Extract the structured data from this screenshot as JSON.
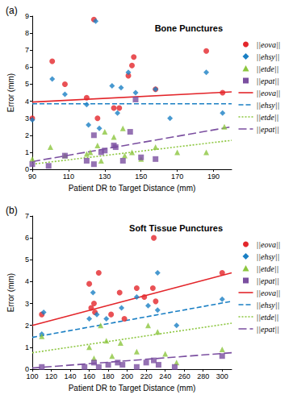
{
  "chart_data": [
    {
      "type": "scatter",
      "panel_label": "(a)",
      "title": "Bone Punctures",
      "x_label": "Patient DR to Target Distance (mm)",
      "y_label": "Error (mm)",
      "xlim": [
        90,
        200
      ],
      "xticks": [
        90,
        110,
        130,
        150,
        170,
        190
      ],
      "ylim": [
        0,
        9
      ],
      "yticks": [
        0,
        1,
        2,
        3,
        4,
        5,
        6,
        7,
        8,
        9
      ],
      "grid": false,
      "legend": "right",
      "series": [
        {
          "name": "||eova||",
          "color": "#e3262b",
          "marker": "circle",
          "x": [
            90,
            101,
            108,
            120,
            124,
            135,
            138,
            143,
            145,
            146,
            158,
            186,
            195,
            126
          ],
          "values": [
            3.0,
            6.35,
            5.0,
            4.2,
            8.8,
            3.6,
            3.6,
            5.5,
            6.1,
            6.6,
            4.7,
            6.95,
            4.5,
            3.0
          ]
        },
        {
          "name": "||ehsy||",
          "color": "#1a7fc4",
          "marker": "diamond",
          "x": [
            90,
            101,
            108,
            120,
            125,
            134,
            139,
            137,
            143,
            147,
            158,
            166,
            186,
            195,
            127,
            121
          ],
          "values": [
            2.9,
            5.3,
            4.4,
            3.8,
            8.7,
            4.9,
            4.8,
            3.3,
            5.7,
            4.5,
            4.7,
            3.0,
            5.7,
            3.3,
            2.4,
            2.6
          ]
        },
        {
          "name": "||etde||",
          "color": "#8cc63f",
          "marker": "triangle",
          "x": [
            90,
            100,
            108,
            122,
            126,
            128,
            130,
            135,
            140,
            141,
            145,
            150,
            158,
            170,
            186,
            196,
            120
          ],
          "values": [
            0.6,
            1.3,
            0.8,
            1.0,
            1.4,
            0.5,
            2.2,
            1.9,
            2.4,
            0.8,
            1.0,
            0.6,
            1.3,
            1.0,
            1.0,
            2.5,
            0.9
          ]
        },
        {
          "name": "||epat||",
          "color": "#7b4fa0",
          "marker": "square",
          "x": [
            90,
            99,
            108,
            120,
            124,
            128,
            130,
            135,
            140,
            144,
            147,
            150,
            158,
            124,
            136
          ],
          "values": [
            0.3,
            0.2,
            0.8,
            0.5,
            2.0,
            1.0,
            1.1,
            1.4,
            0.5,
            2.2,
            4.1,
            0.7,
            0.6,
            0.3,
            1.3
          ]
        },
        {
          "name": "||eova||",
          "type": "line",
          "color": "#e3262b",
          "line_style": "solid",
          "x": [
            90,
            200
          ],
          "values": [
            3.95,
            4.55
          ]
        },
        {
          "name": "||ehsy||",
          "type": "line",
          "color": "#1a7fc4",
          "line_style": "dashed",
          "x": [
            90,
            200
          ],
          "values": [
            3.85,
            3.85
          ]
        },
        {
          "name": "||etde||",
          "type": "line",
          "color": "#8cc63f",
          "line_style": "dotted",
          "x": [
            90,
            200
          ],
          "values": [
            0.3,
            1.7
          ]
        },
        {
          "name": "||epat||",
          "type": "line",
          "color": "#7b4fa0",
          "line_style": "longdash",
          "x": [
            90,
            200
          ],
          "values": [
            0.45,
            2.5
          ]
        }
      ]
    },
    {
      "type": "scatter",
      "panel_label": "(b)",
      "title": "Soft Tissue Punctures",
      "x_label": "Patient DR to Target Distance (mm)",
      "y_label": "Error (mm)",
      "xlim": [
        100,
        310
      ],
      "xticks": [
        100,
        120,
        140,
        160,
        180,
        200,
        220,
        240,
        260,
        280,
        300
      ],
      "ylim": [
        0,
        7
      ],
      "yticks": [
        0,
        1,
        2,
        3,
        4,
        5,
        6,
        7
      ],
      "grid": false,
      "legend": "right",
      "series": [
        {
          "name": "||eova||",
          "color": "#e3262b",
          "marker": "circle",
          "x": [
            110,
            160,
            162,
            170,
            165,
            183,
            192,
            197,
            210,
            218,
            227,
            228,
            230,
            300,
            166
          ],
          "values": [
            2.5,
            3.9,
            2.8,
            4.4,
            3.0,
            2.5,
            3.5,
            2.3,
            3.7,
            3.3,
            3.7,
            6.0,
            3.1,
            4.4,
            2.6
          ]
        },
        {
          "name": "||ehsy||",
          "color": "#1a7fc4",
          "marker": "diamond",
          "x": [
            110,
            112,
            160,
            164,
            168,
            178,
            194,
            210,
            222,
            232,
            252,
            300,
            232
          ],
          "values": [
            1.6,
            2.6,
            2.3,
            3.5,
            2.5,
            2.3,
            2.8,
            3.3,
            2.9,
            2.7,
            2.0,
            3.2,
            4.4
          ]
        },
        {
          "name": "||etde||",
          "color": "#8cc63f",
          "marker": "triangle",
          "x": [
            110,
            160,
            165,
            172,
            178,
            184,
            193,
            210,
            222,
            232,
            240,
            252,
            300
          ],
          "values": [
            1.5,
            1.0,
            0.5,
            2.0,
            1.3,
            0.6,
            1.2,
            0.8,
            2.0,
            1.7,
            0.7,
            0.3,
            0.9
          ]
        },
        {
          "name": "||epat||",
          "color": "#7b4fa0",
          "marker": "square",
          "x": [
            110,
            155,
            165,
            170,
            180,
            190,
            195,
            210,
            220,
            228,
            233,
            250,
            300
          ],
          "values": [
            0.1,
            0.1,
            0.3,
            0.1,
            0.2,
            0.3,
            0.2,
            0.1,
            0.3,
            0.4,
            0.2,
            0.1,
            0.6
          ]
        },
        {
          "name": "||eova||",
          "type": "line",
          "color": "#e3262b",
          "line_style": "solid",
          "x": [
            100,
            310
          ],
          "values": [
            2.0,
            4.4
          ]
        },
        {
          "name": "||ehsy||",
          "type": "line",
          "color": "#1a7fc4",
          "line_style": "dashed",
          "x": [
            100,
            310
          ],
          "values": [
            1.45,
            3.1
          ]
        },
        {
          "name": "||etde||",
          "type": "line",
          "color": "#8cc63f",
          "line_style": "dotted",
          "x": [
            100,
            310
          ],
          "values": [
            0.75,
            2.1
          ]
        },
        {
          "name": "||epat||",
          "type": "line",
          "color": "#7b4fa0",
          "line_style": "longdash",
          "x": [
            100,
            310
          ],
          "values": [
            0.05,
            0.75
          ]
        }
      ]
    }
  ]
}
